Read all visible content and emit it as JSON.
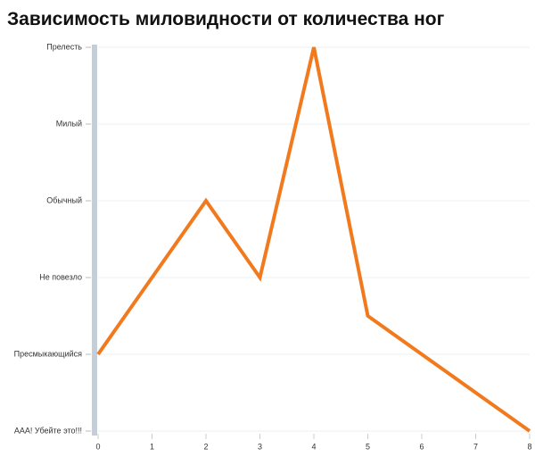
{
  "chart_data": {
    "type": "line",
    "title": "Зависимость миловидности от количества ног",
    "x": [
      0,
      1,
      2,
      3,
      4,
      5,
      6,
      7,
      8
    ],
    "values": [
      1,
      2,
      3,
      2,
      5,
      1.5,
      1,
      0.5,
      0
    ],
    "color": "#f27a1e",
    "xlim": [
      0,
      8
    ],
    "xticks": [
      0,
      1,
      2,
      3,
      4,
      5,
      6,
      7,
      8
    ],
    "ylim": [
      0,
      5
    ],
    "yticks": [
      {
        "value": 0,
        "label": "ААА! Убейте это!!!"
      },
      {
        "value": 1,
        "label": "Пресмыкающийся"
      },
      {
        "value": 2,
        "label": "Не повезло"
      },
      {
        "value": 3,
        "label": "Обычный"
      },
      {
        "value": 4,
        "label": "Милый"
      },
      {
        "value": 5,
        "label": "Прелесть"
      }
    ],
    "grid": true
  }
}
